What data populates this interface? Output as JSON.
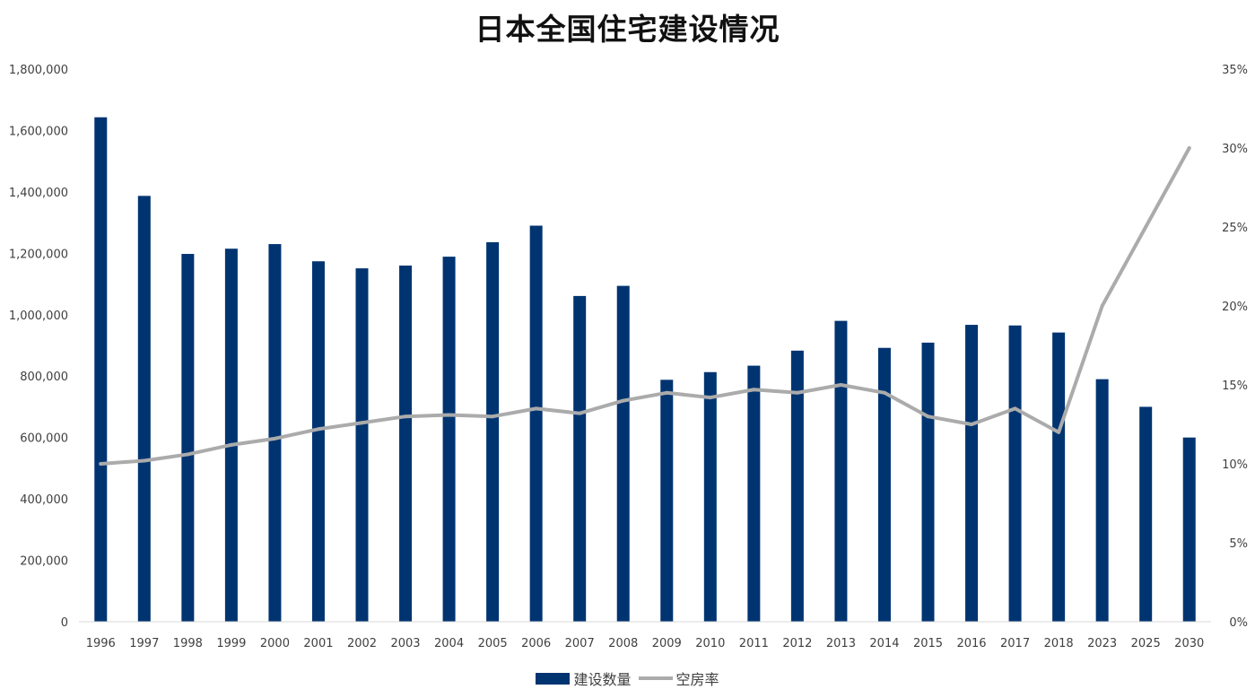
{
  "chart_data": {
    "type": "bar+line",
    "title": "日本全国住宅建设情况",
    "categories": [
      "1996",
      "1997",
      "1998",
      "1999",
      "2000",
      "2001",
      "2002",
      "2003",
      "2004",
      "2005",
      "2006",
      "2007",
      "2008",
      "2009",
      "2010",
      "2011",
      "2012",
      "2013",
      "2014",
      "2015",
      "2016",
      "2017",
      "2018",
      "2023",
      "2025",
      "2030"
    ],
    "series": [
      {
        "name": "建设数量",
        "type": "bar",
        "axis": "left",
        "color": "#003471",
        "values": [
          1643000,
          1387000,
          1198000,
          1215000,
          1230000,
          1174000,
          1151000,
          1160000,
          1189000,
          1236000,
          1290000,
          1061000,
          1094000,
          788000,
          813000,
          834000,
          883000,
          980000,
          892000,
          909000,
          967000,
          965000,
          942000,
          790000,
          700000,
          600000
        ]
      },
      {
        "name": "空房率",
        "type": "line",
        "axis": "right",
        "color": "#ababab",
        "values": [
          10.0,
          10.2,
          10.6,
          11.2,
          11.6,
          12.2,
          12.6,
          13.0,
          13.1,
          13.0,
          13.5,
          13.2,
          14.0,
          14.5,
          14.2,
          14.7,
          14.5,
          15.0,
          14.5,
          13.0,
          12.5,
          13.5,
          12.0,
          20.0,
          25.0,
          30.0
        ]
      }
    ],
    "y_left": {
      "min": 0,
      "max": 1800000,
      "ticks": [
        0,
        200000,
        400000,
        600000,
        800000,
        1000000,
        1200000,
        1400000,
        1600000,
        1800000
      ],
      "tick_labels": [
        "0",
        "200,000",
        "400,000",
        "600,000",
        "800,000",
        "1,000,000",
        "1,200,000",
        "1,400,000",
        "1,600,000",
        "1,800,000"
      ]
    },
    "y_right": {
      "min": 0,
      "max": 35,
      "ticks": [
        0,
        5,
        10,
        15,
        20,
        25,
        30,
        35
      ],
      "tick_labels": [
        "0%",
        "5%",
        "10%",
        "15%",
        "20%",
        "25%",
        "30%",
        "35%"
      ]
    },
    "grid": false,
    "legend_position": "bottom-center"
  },
  "colors": {
    "axis_line": "#d9d9d9"
  }
}
